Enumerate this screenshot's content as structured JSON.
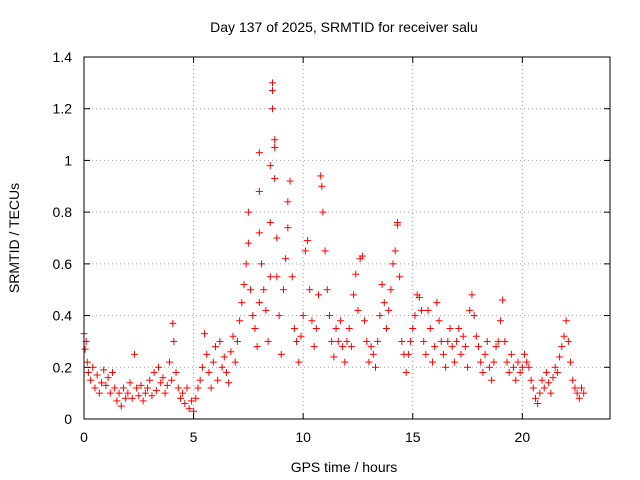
{
  "chart_data": {
    "type": "scatter",
    "title": "Day 137 of 2025, SRMTID for receiver salu",
    "xlabel": "GPS time / hours",
    "ylabel": "SRMTID / TECUs",
    "xlim": [
      0,
      24
    ],
    "ylim": [
      0,
      1.4
    ],
    "xticks": [
      0,
      5,
      10,
      15,
      20
    ],
    "yticks": [
      0,
      0.2,
      0.4,
      0.6,
      0.8,
      1,
      1.2,
      1.4
    ],
    "ytick_labels": [
      "0",
      "0.2",
      "0.4",
      "0.6",
      "0.8",
      "1",
      "1.2",
      "1.4"
    ],
    "grid": true,
    "marker": "plus",
    "color": "#ff0000",
    "series": [
      {
        "name": "SRMTID",
        "points": [
          [
            0.0,
            0.33
          ],
          [
            0.05,
            0.27
          ],
          [
            0.1,
            0.3
          ],
          [
            0.15,
            0.22
          ],
          [
            0.2,
            0.18
          ],
          [
            0.3,
            0.15
          ],
          [
            0.4,
            0.2
          ],
          [
            0.5,
            0.12
          ],
          [
            0.6,
            0.17
          ],
          [
            0.7,
            0.1
          ],
          [
            0.8,
            0.14
          ],
          [
            0.9,
            0.19
          ],
          [
            1.0,
            0.13
          ],
          [
            1.1,
            0.16
          ],
          [
            1.2,
            0.1
          ],
          [
            1.3,
            0.18
          ],
          [
            1.4,
            0.12
          ],
          [
            1.5,
            0.07
          ],
          [
            1.6,
            0.1
          ],
          [
            1.7,
            0.05
          ],
          [
            1.8,
            0.12
          ],
          [
            1.9,
            0.08
          ],
          [
            2.0,
            0.1
          ],
          [
            2.1,
            0.14
          ],
          [
            2.2,
            0.08
          ],
          [
            2.3,
            0.25
          ],
          [
            2.4,
            0.12
          ],
          [
            2.5,
            0.09
          ],
          [
            2.6,
            0.13
          ],
          [
            2.7,
            0.07
          ],
          [
            2.8,
            0.1
          ],
          [
            2.9,
            0.12
          ],
          [
            3.0,
            0.15
          ],
          [
            3.1,
            0.09
          ],
          [
            3.2,
            0.18
          ],
          [
            3.3,
            0.11
          ],
          [
            3.4,
            0.2
          ],
          [
            3.5,
            0.14
          ],
          [
            3.6,
            0.16
          ],
          [
            3.7,
            0.1
          ],
          [
            3.8,
            0.13
          ],
          [
            3.9,
            0.22
          ],
          [
            4.0,
            0.15
          ],
          [
            4.05,
            0.37
          ],
          [
            4.1,
            0.3
          ],
          [
            4.2,
            0.18
          ],
          [
            4.3,
            0.12
          ],
          [
            4.4,
            0.08
          ],
          [
            4.5,
            0.1
          ],
          [
            4.6,
            0.06
          ],
          [
            4.7,
            0.12
          ],
          [
            4.8,
            0.04
          ],
          [
            4.9,
            0.07
          ],
          [
            5.0,
            0.03
          ],
          [
            5.1,
            0.08
          ],
          [
            5.2,
            0.12
          ],
          [
            5.3,
            0.15
          ],
          [
            5.4,
            0.2
          ],
          [
            5.5,
            0.33
          ],
          [
            5.6,
            0.25
          ],
          [
            5.7,
            0.18
          ],
          [
            5.8,
            0.12
          ],
          [
            5.9,
            0.22
          ],
          [
            6.0,
            0.28
          ],
          [
            6.1,
            0.15
          ],
          [
            6.2,
            0.3
          ],
          [
            6.3,
            0.2
          ],
          [
            6.4,
            0.24
          ],
          [
            6.5,
            0.18
          ],
          [
            6.6,
            0.14
          ],
          [
            6.7,
            0.26
          ],
          [
            6.8,
            0.32
          ],
          [
            6.9,
            0.22
          ],
          [
            7.0,
            0.3
          ],
          [
            7.1,
            0.38
          ],
          [
            7.2,
            0.45
          ],
          [
            7.3,
            0.52
          ],
          [
            7.4,
            0.6
          ],
          [
            7.5,
            0.68
          ],
          [
            7.5,
            0.8
          ],
          [
            7.6,
            0.5
          ],
          [
            7.7,
            0.4
          ],
          [
            7.8,
            0.35
          ],
          [
            7.9,
            0.28
          ],
          [
            8.0,
            0.45
          ],
          [
            8.0,
            0.72
          ],
          [
            8.0,
            0.88
          ],
          [
            8.0,
            1.03
          ],
          [
            8.1,
            0.6
          ],
          [
            8.2,
            0.5
          ],
          [
            8.3,
            0.42
          ],
          [
            8.4,
            0.3
          ],
          [
            8.5,
            0.55
          ],
          [
            8.5,
            0.76
          ],
          [
            8.5,
            0.98
          ],
          [
            8.6,
            1.3
          ],
          [
            8.6,
            1.27
          ],
          [
            8.6,
            1.2
          ],
          [
            8.7,
            1.08
          ],
          [
            8.7,
            1.05
          ],
          [
            8.7,
            0.93
          ],
          [
            8.8,
            0.7
          ],
          [
            8.8,
            0.55
          ],
          [
            8.9,
            0.4
          ],
          [
            9.0,
            0.25
          ],
          [
            9.1,
            0.5
          ],
          [
            9.2,
            0.62
          ],
          [
            9.3,
            0.74
          ],
          [
            9.3,
            0.84
          ],
          [
            9.4,
            0.92
          ],
          [
            9.5,
            0.55
          ],
          [
            9.6,
            0.35
          ],
          [
            9.7,
            0.3
          ],
          [
            9.8,
            0.22
          ],
          [
            9.9,
            0.32
          ],
          [
            10.0,
            0.4
          ],
          [
            10.1,
            0.65
          ],
          [
            10.2,
            0.69
          ],
          [
            10.3,
            0.5
          ],
          [
            10.4,
            0.38
          ],
          [
            10.5,
            0.28
          ],
          [
            10.6,
            0.35
          ],
          [
            10.7,
            0.48
          ],
          [
            10.8,
            0.94
          ],
          [
            10.85,
            0.9
          ],
          [
            10.9,
            0.8
          ],
          [
            11.0,
            0.65
          ],
          [
            11.1,
            0.5
          ],
          [
            11.2,
            0.4
          ],
          [
            11.3,
            0.3
          ],
          [
            11.4,
            0.24
          ],
          [
            11.5,
            0.35
          ],
          [
            11.6,
            0.3
          ],
          [
            11.7,
            0.38
          ],
          [
            11.8,
            0.28
          ],
          [
            11.9,
            0.22
          ],
          [
            12.0,
            0.3
          ],
          [
            12.1,
            0.35
          ],
          [
            12.2,
            0.28
          ],
          [
            12.3,
            0.48
          ],
          [
            12.4,
            0.56
          ],
          [
            12.5,
            0.42
          ],
          [
            12.6,
            0.62
          ],
          [
            12.7,
            0.63
          ],
          [
            12.8,
            0.38
          ],
          [
            12.9,
            0.3
          ],
          [
            13.0,
            0.22
          ],
          [
            13.1,
            0.28
          ],
          [
            13.2,
            0.25
          ],
          [
            13.3,
            0.2
          ],
          [
            13.4,
            0.3
          ],
          [
            13.5,
            0.4
          ],
          [
            13.6,
            0.52
          ],
          [
            13.7,
            0.45
          ],
          [
            13.8,
            0.35
          ],
          [
            13.9,
            0.42
          ],
          [
            14.0,
            0.5
          ],
          [
            14.1,
            0.6
          ],
          [
            14.2,
            0.65
          ],
          [
            14.3,
            0.75
          ],
          [
            14.3,
            0.76
          ],
          [
            14.4,
            0.55
          ],
          [
            14.5,
            0.3
          ],
          [
            14.6,
            0.25
          ],
          [
            14.7,
            0.18
          ],
          [
            14.8,
            0.25
          ],
          [
            14.9,
            0.3
          ],
          [
            15.0,
            0.35
          ],
          [
            15.1,
            0.4
          ],
          [
            15.2,
            0.48
          ],
          [
            15.3,
            0.47
          ],
          [
            15.4,
            0.42
          ],
          [
            15.5,
            0.3
          ],
          [
            15.6,
            0.25
          ],
          [
            15.7,
            0.42
          ],
          [
            15.8,
            0.35
          ],
          [
            15.9,
            0.22
          ],
          [
            16.0,
            0.28
          ],
          [
            16.1,
            0.45
          ],
          [
            16.2,
            0.38
          ],
          [
            16.3,
            0.3
          ],
          [
            16.4,
            0.25
          ],
          [
            16.5,
            0.2
          ],
          [
            16.6,
            0.3
          ],
          [
            16.7,
            0.35
          ],
          [
            16.8,
            0.28
          ],
          [
            16.9,
            0.22
          ],
          [
            17.0,
            0.3
          ],
          [
            17.1,
            0.35
          ],
          [
            17.2,
            0.25
          ],
          [
            17.3,
            0.32
          ],
          [
            17.4,
            0.28
          ],
          [
            17.5,
            0.2
          ],
          [
            17.6,
            0.42
          ],
          [
            17.7,
            0.48
          ],
          [
            17.8,
            0.4
          ],
          [
            17.9,
            0.32
          ],
          [
            18.0,
            0.28
          ],
          [
            18.1,
            0.22
          ],
          [
            18.2,
            0.18
          ],
          [
            18.3,
            0.25
          ],
          [
            18.4,
            0.3
          ],
          [
            18.5,
            0.2
          ],
          [
            18.6,
            0.15
          ],
          [
            18.7,
            0.22
          ],
          [
            18.8,
            0.28
          ],
          [
            18.9,
            0.3
          ],
          [
            19.0,
            0.38
          ],
          [
            19.1,
            0.46
          ],
          [
            19.2,
            0.3
          ],
          [
            19.3,
            0.22
          ],
          [
            19.4,
            0.18
          ],
          [
            19.5,
            0.25
          ],
          [
            19.6,
            0.2
          ],
          [
            19.7,
            0.15
          ],
          [
            19.8,
            0.22
          ],
          [
            19.9,
            0.18
          ],
          [
            20.0,
            0.2
          ],
          [
            20.1,
            0.25
          ],
          [
            20.2,
            0.22
          ],
          [
            20.3,
            0.2
          ],
          [
            20.4,
            0.15
          ],
          [
            20.5,
            0.12
          ],
          [
            20.6,
            0.08
          ],
          [
            20.7,
            0.06
          ],
          [
            20.8,
            0.1
          ],
          [
            20.9,
            0.15
          ],
          [
            21.0,
            0.12
          ],
          [
            21.1,
            0.18
          ],
          [
            21.2,
            0.14
          ],
          [
            21.3,
            0.1
          ],
          [
            21.4,
            0.16
          ],
          [
            21.5,
            0.2
          ],
          [
            21.6,
            0.18
          ],
          [
            21.7,
            0.24
          ],
          [
            21.8,
            0.28
          ],
          [
            21.9,
            0.32
          ],
          [
            22.0,
            0.38
          ],
          [
            22.1,
            0.3
          ],
          [
            22.2,
            0.22
          ],
          [
            22.3,
            0.15
          ],
          [
            22.4,
            0.12
          ],
          [
            22.5,
            0.1
          ],
          [
            22.6,
            0.08
          ],
          [
            22.7,
            0.12
          ],
          [
            22.8,
            0.1
          ]
        ]
      }
    ]
  }
}
